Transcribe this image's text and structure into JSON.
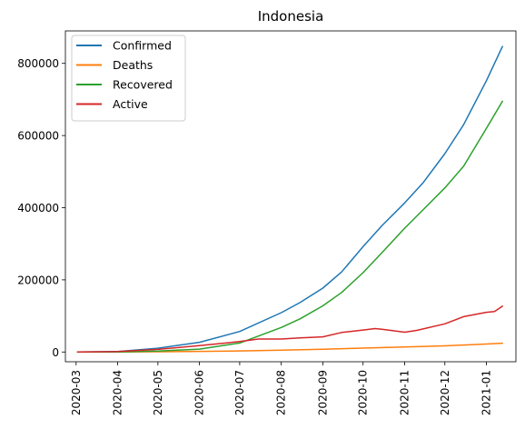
{
  "chart_data": {
    "type": "line",
    "title": "Indonesia",
    "xlabel": "",
    "ylabel": "",
    "xlim": [
      "2020-02-22",
      "2021-01-23"
    ],
    "ylim": [
      -27000,
      890000
    ],
    "x_ticks": [
      "2020-03",
      "2020-04",
      "2020-05",
      "2020-06",
      "2020-07",
      "2020-08",
      "2020-09",
      "2020-10",
      "2020-11",
      "2020-12",
      "2021-01"
    ],
    "y_ticks": [
      0,
      200000,
      400000,
      600000,
      800000
    ],
    "y_tick_labels": [
      "0",
      "200000",
      "400000",
      "600000",
      "800000"
    ],
    "grid": false,
    "legend": "upper-left",
    "series": [
      {
        "name": "Confirmed",
        "color": "#1f77b4",
        "points": [
          [
            "2020-03-02",
            0
          ],
          [
            "2020-04-01",
            1500
          ],
          [
            "2020-05-01",
            10500
          ],
          [
            "2020-06-01",
            27000
          ],
          [
            "2020-07-01",
            57000
          ],
          [
            "2020-08-01",
            109000
          ],
          [
            "2020-08-15",
            137000
          ],
          [
            "2020-09-01",
            177000
          ],
          [
            "2020-09-15",
            222000
          ],
          [
            "2020-10-01",
            292000
          ],
          [
            "2020-10-15",
            350000
          ],
          [
            "2020-11-01",
            413000
          ],
          [
            "2020-11-15",
            470000
          ],
          [
            "2020-12-01",
            550000
          ],
          [
            "2020-12-15",
            630000
          ],
          [
            "2021-01-01",
            752000
          ],
          [
            "2021-01-13",
            847000
          ]
        ]
      },
      {
        "name": "Deaths",
        "color": "#ff7f0e",
        "points": [
          [
            "2020-03-02",
            0
          ],
          [
            "2020-04-01",
            150
          ],
          [
            "2020-05-01",
            800
          ],
          [
            "2020-06-01",
            1600
          ],
          [
            "2020-07-01",
            2900
          ],
          [
            "2020-08-01",
            5200
          ],
          [
            "2020-09-01",
            7500
          ],
          [
            "2020-10-01",
            10900
          ],
          [
            "2020-11-01",
            14000
          ],
          [
            "2020-12-01",
            17000
          ],
          [
            "2021-01-01",
            22000
          ],
          [
            "2021-01-13",
            24500
          ]
        ]
      },
      {
        "name": "Recovered",
        "color": "#2ca02c",
        "points": [
          [
            "2020-03-02",
            0
          ],
          [
            "2020-04-01",
            100
          ],
          [
            "2020-05-01",
            2400
          ],
          [
            "2020-06-01",
            7900
          ],
          [
            "2020-07-01",
            25000
          ],
          [
            "2020-08-01",
            68000
          ],
          [
            "2020-08-15",
            92000
          ],
          [
            "2020-09-01",
            128000
          ],
          [
            "2020-09-15",
            165000
          ],
          [
            "2020-10-01",
            220000
          ],
          [
            "2020-10-15",
            275000
          ],
          [
            "2020-11-01",
            343000
          ],
          [
            "2020-11-15",
            395000
          ],
          [
            "2020-12-01",
            455000
          ],
          [
            "2020-12-15",
            515000
          ],
          [
            "2021-01-01",
            620000
          ],
          [
            "2021-01-13",
            695000
          ]
        ]
      },
      {
        "name": "Active",
        "color": "#d62728",
        "points": [
          [
            "2020-03-02",
            0
          ],
          [
            "2020-04-01",
            1300
          ],
          [
            "2020-05-01",
            7300
          ],
          [
            "2020-06-01",
            17500
          ],
          [
            "2020-07-01",
            29000
          ],
          [
            "2020-07-15",
            36000
          ],
          [
            "2020-08-01",
            36000
          ],
          [
            "2020-08-15",
            39000
          ],
          [
            "2020-09-01",
            42000
          ],
          [
            "2020-09-15",
            54000
          ],
          [
            "2020-10-01",
            61000
          ],
          [
            "2020-10-10",
            65000
          ],
          [
            "2020-10-15",
            63000
          ],
          [
            "2020-11-01",
            55000
          ],
          [
            "2020-11-10",
            60000
          ],
          [
            "2020-12-01",
            78000
          ],
          [
            "2020-12-15",
            98000
          ],
          [
            "2021-01-01",
            110000
          ],
          [
            "2021-01-07",
            112000
          ],
          [
            "2021-01-13",
            127000
          ]
        ]
      }
    ]
  }
}
